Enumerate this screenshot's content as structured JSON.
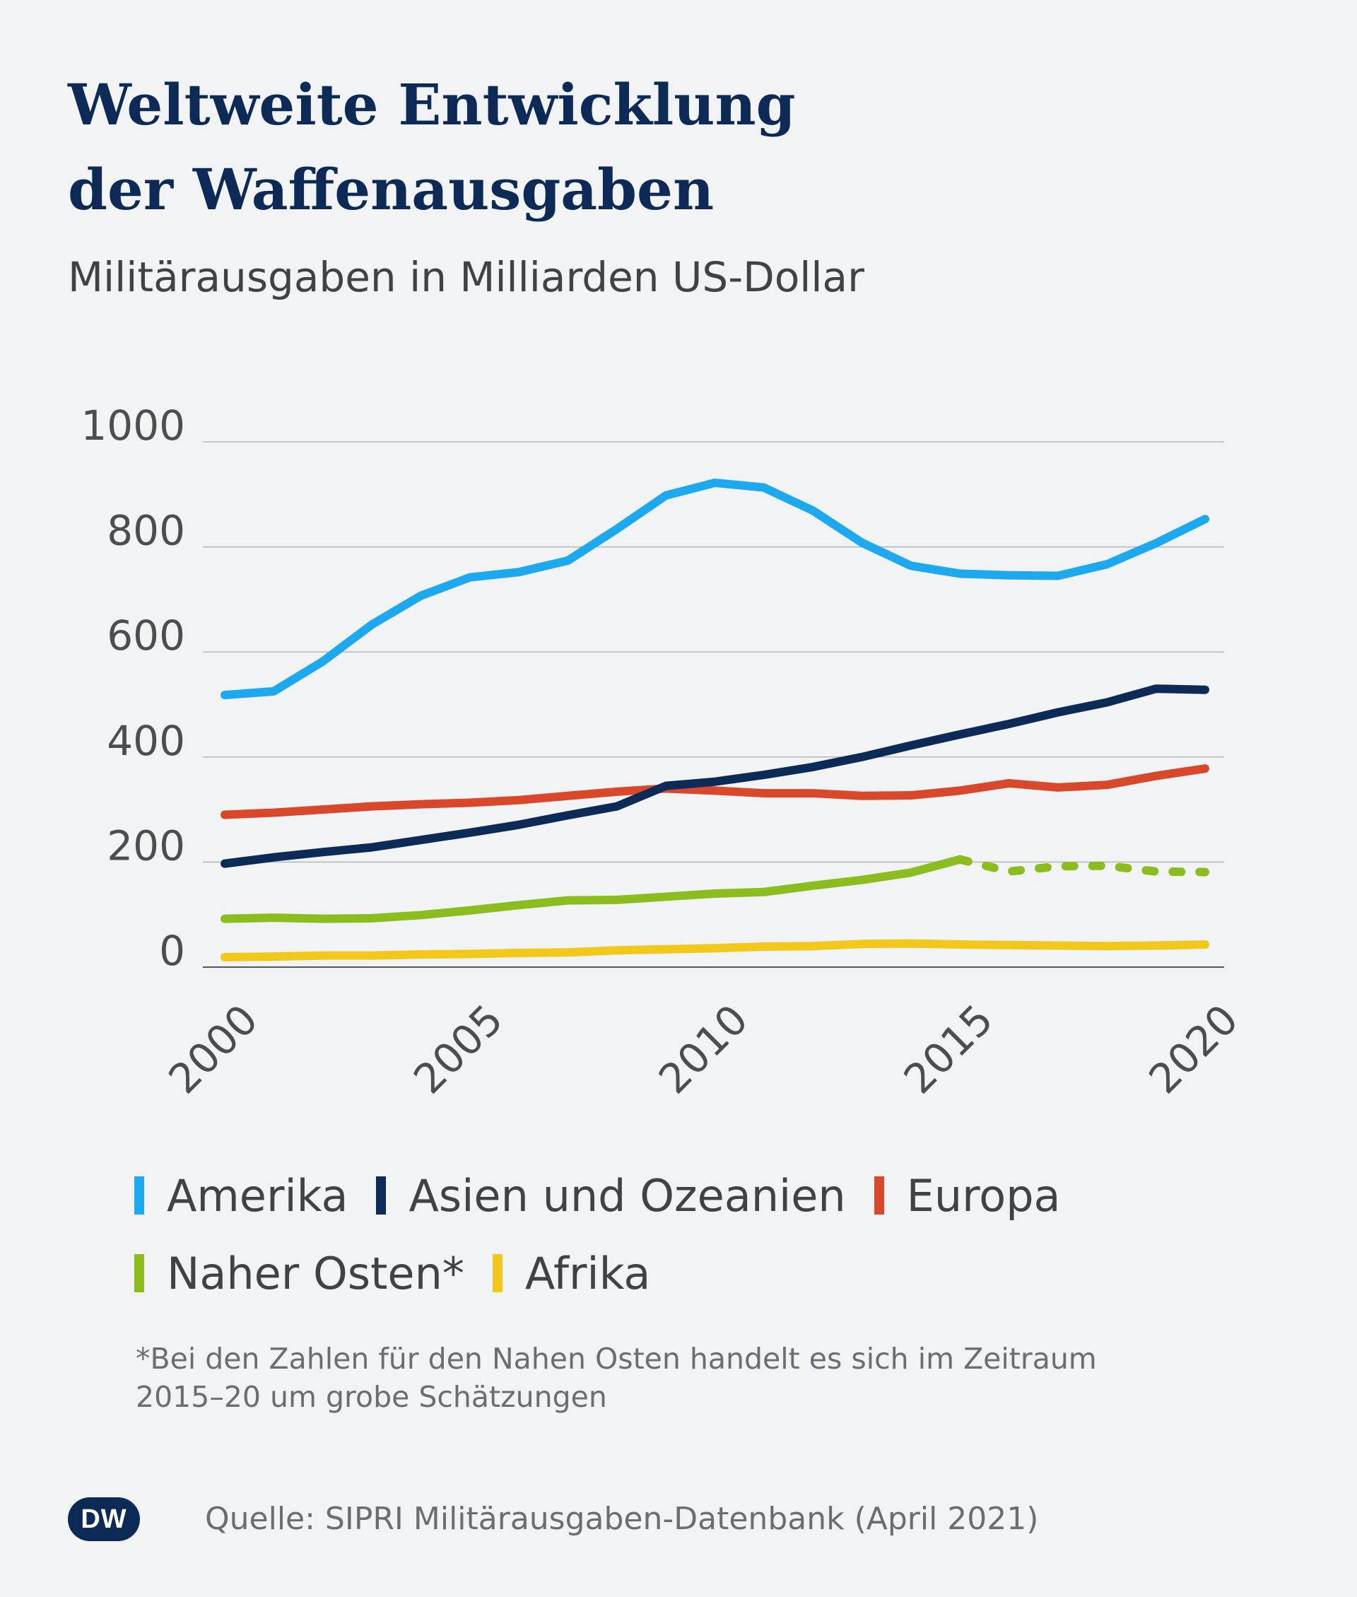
{
  "header": {
    "title_line1": "Weltweite Entwicklung",
    "title_line2": "der Waffenausgaben",
    "subtitle": "Militärausgaben in Milliarden US-Dollar"
  },
  "chart_data": {
    "type": "line",
    "title": "Weltweite Entwicklung der Waffenausgaben",
    "subtitle": "Militärausgaben in Milliarden US-Dollar",
    "xlabel": "",
    "ylabel": "",
    "x": [
      2000,
      2001,
      2002,
      2003,
      2004,
      2005,
      2006,
      2007,
      2008,
      2009,
      2010,
      2011,
      2012,
      2013,
      2014,
      2015,
      2016,
      2017,
      2018,
      2019,
      2020
    ],
    "x_ticks": [
      "2000",
      "2005",
      "2010",
      "2015",
      "2020"
    ],
    "y_ticks": [
      "0",
      "200",
      "400",
      "600",
      "800",
      "1000"
    ],
    "ylim": [
      0,
      1000
    ],
    "grid": true,
    "legend_position": "bottom",
    "series": [
      {
        "name": "Amerika",
        "color": "#1ca9f0",
        "values": [
          518,
          525,
          582,
          652,
          707,
          742,
          752,
          774,
          834,
          898,
          922,
          913,
          869,
          808,
          764,
          749,
          746,
          745,
          767,
          807,
          853
        ]
      },
      {
        "name": "Asien und Ozeanien",
        "color": "#0c2a55",
        "values": [
          197,
          209,
          219,
          228,
          242,
          256,
          271,
          289,
          306,
          345,
          353,
          366,
          381,
          400,
          422,
          443,
          463,
          485,
          504,
          530,
          528
        ]
      },
      {
        "name": "Europa",
        "color": "#d9482b",
        "values": [
          290,
          294,
          300,
          306,
          310,
          313,
          318,
          326,
          334,
          340,
          336,
          331,
          331,
          326,
          327,
          336,
          350,
          342,
          347,
          364,
          378
        ]
      },
      {
        "name": "Naher Osten*",
        "color": "#8cbd1e",
        "estimated_from": 2015,
        "values": [
          92,
          94,
          92,
          93,
          99,
          108,
          118,
          127,
          128,
          134,
          140,
          143,
          155,
          166,
          180,
          205,
          182,
          192,
          193,
          182,
          181
        ]
      },
      {
        "name": "Afrika",
        "color": "#f2c81a",
        "values": [
          19,
          20,
          22,
          22,
          24,
          25,
          27,
          28,
          32,
          34,
          36,
          39,
          40,
          44,
          45,
          43,
          42,
          41,
          40,
          41,
          43
        ]
      }
    ]
  },
  "footnote": {
    "line1": "*Bei den Zahlen für den Nahen Osten handelt es sich im Zeitraum",
    "line2": "2015–20 um grobe Schätzungen"
  },
  "footer": {
    "logo_text": "DW",
    "source": "Quelle: SIPRI Militärausgaben-Datenbank (April 2021)"
  }
}
